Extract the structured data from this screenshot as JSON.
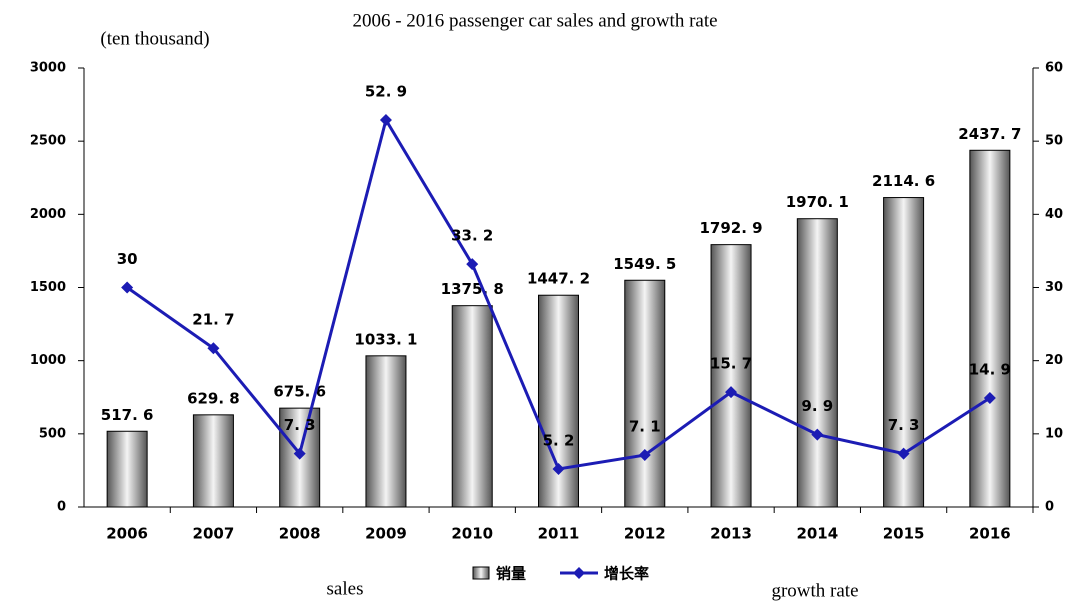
{
  "chart_data": {
    "type": "bar-line",
    "title": "2006 - 2016 passenger car sales and growth rate",
    "y_label": "(ten thousand)",
    "annotations": [
      "sales",
      "growth rate"
    ],
    "categories": [
      "2006",
      "2007",
      "2008",
      "2009",
      "2010",
      "2011",
      "2012",
      "2013",
      "2014",
      "2015",
      "2016"
    ],
    "series": [
      {
        "name": "销量",
        "type": "bar",
        "color": "#808080",
        "values": [
          517.6,
          629.8,
          675.6,
          1033.1,
          1375.8,
          1447.2,
          1549.5,
          1792.9,
          1970.1,
          2114.6,
          2437.7
        ],
        "value_labels": [
          "517. 6",
          "629. 8",
          "675. 6",
          "1033. 1",
          "1375. 8",
          "1447. 2",
          "1549. 5",
          "1792. 9",
          "1970. 1",
          "2114. 6",
          "2437. 7"
        ]
      },
      {
        "name": "增长率",
        "type": "line",
        "axis": "y2",
        "color": "#1c1cb4",
        "values": [
          30,
          21.7,
          7.3,
          52.9,
          33.2,
          5.2,
          7.1,
          15.7,
          9.9,
          7.3,
          14.9
        ],
        "value_labels": [
          "30",
          "21. 7",
          "7. 3",
          "52. 9",
          "33. 2",
          "5. 2",
          "7. 1",
          "15. 7",
          "9. 9",
          "7. 3",
          "14. 9"
        ]
      }
    ],
    "ylim": [
      0,
      3000
    ],
    "yticks": [
      0,
      500,
      1000,
      1500,
      2000,
      2500,
      3000
    ],
    "y2lim": [
      0,
      60
    ],
    "y2ticks": [
      0,
      10,
      20,
      30,
      40,
      50,
      60
    ],
    "legend": "bottom"
  }
}
